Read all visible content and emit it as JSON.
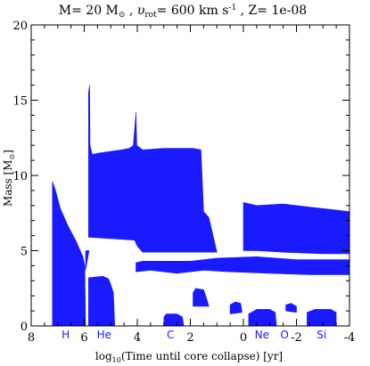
{
  "chart_data": {
    "type": "area",
    "title": {
      "prefix": "M= 20 M",
      "sun_symbol": "⊙",
      "mid1": " , ",
      "v": "υ",
      "v_sub": "rot",
      "mid2": "= 600 km s",
      "exp": "-1",
      "suffix": " , Z= 1e-08"
    },
    "xlabel": {
      "prefix": "log",
      "sub": "10",
      "suffix": "(Time until core collapse) [yr]"
    },
    "ylabel": {
      "prefix": "Mass [M",
      "sun_symbol": "⊙",
      "suffix": "]"
    },
    "xlim": [
      8,
      -4
    ],
    "ylim": [
      0,
      20
    ],
    "x_ticks": [
      {
        "value": 8,
        "label": "8"
      },
      {
        "value": 6,
        "label": "6"
      },
      {
        "value": 4,
        "label": "4"
      },
      {
        "value": 2,
        "label": "2"
      },
      {
        "value": 0,
        "label": "0"
      },
      {
        "value": -2,
        "label": "-2"
      },
      {
        "value": -4,
        "label": "-4"
      }
    ],
    "y_ticks": [
      {
        "value": 0,
        "label": "0"
      },
      {
        "value": 5,
        "label": "5"
      },
      {
        "value": 10,
        "label": "10"
      },
      {
        "value": 15,
        "label": "15"
      },
      {
        "value": 20,
        "label": "20"
      }
    ],
    "burning_stages": [
      {
        "label": "H",
        "x": 6.7
      },
      {
        "label": "He",
        "x": 5.25
      },
      {
        "label": "C",
        "x": 2.75
      },
      {
        "label": "Ne",
        "x": -0.7
      },
      {
        "label": "O",
        "x": -1.55
      },
      {
        "label": "Si",
        "x": -2.95
      }
    ],
    "convective_zones": [
      {
        "name": "H core",
        "points": [
          [
            7.2,
            0
          ],
          [
            7.2,
            9.6
          ],
          [
            7.1,
            9.1
          ],
          [
            6.9,
            7.8
          ],
          [
            6.6,
            6.6
          ],
          [
            6.3,
            5.6
          ],
          [
            6.05,
            4.6
          ],
          [
            5.98,
            4.0
          ],
          [
            5.95,
            0
          ]
        ]
      },
      {
        "name": "He core",
        "points": [
          [
            5.84,
            0
          ],
          [
            5.84,
            3.2
          ],
          [
            5.3,
            3.3
          ],
          [
            5.1,
            3.15
          ],
          [
            5.05,
            3.0
          ],
          [
            4.9,
            2.2
          ],
          [
            4.85,
            0
          ]
        ]
      },
      {
        "name": "H shell early",
        "points": [
          [
            5.95,
            3.7
          ],
          [
            5.9,
            4.2
          ],
          [
            5.84,
            4.8
          ],
          [
            5.82,
            5.0
          ],
          [
            5.95,
            5.0
          ],
          [
            5.95,
            3.7
          ]
        ]
      },
      {
        "name": "H shell",
        "points": [
          [
            5.84,
            5.9
          ],
          [
            5.84,
            15.5
          ],
          [
            5.8,
            16.0
          ],
          [
            5.78,
            12.0
          ],
          [
            5.7,
            11.4
          ],
          [
            5.4,
            11.5
          ],
          [
            4.6,
            11.7
          ],
          [
            4.3,
            11.8
          ],
          [
            4.15,
            12.0
          ],
          [
            4.08,
            13.5
          ],
          [
            4.05,
            14.2
          ],
          [
            4.02,
            12.0
          ],
          [
            3.8,
            11.7
          ],
          [
            3.0,
            11.8
          ],
          [
            1.9,
            11.8
          ],
          [
            1.6,
            11.7
          ],
          [
            1.5,
            7.6
          ],
          [
            1.3,
            7.2
          ],
          [
            1.0,
            4.9
          ],
          [
            3.8,
            4.9
          ],
          [
            4.0,
            5.3
          ],
          [
            4.1,
            5.7
          ],
          [
            5.84,
            5.9
          ]
        ]
      },
      {
        "name": "He shell",
        "points": [
          [
            4.05,
            3.6
          ],
          [
            4.05,
            4.2
          ],
          [
            3.8,
            4.3
          ],
          [
            2.0,
            4.3
          ],
          [
            1.0,
            4.5
          ],
          [
            -0.5,
            4.6
          ],
          [
            -2.0,
            4.4
          ],
          [
            -3.5,
            4.4
          ],
          [
            -4.0,
            4.4
          ],
          [
            -4.0,
            3.4
          ],
          [
            -2.5,
            3.4
          ],
          [
            -1.0,
            3.5
          ],
          [
            0.5,
            3.6
          ],
          [
            1.5,
            3.7
          ],
          [
            2.5,
            3.5
          ],
          [
            3.5,
            3.7
          ],
          [
            4.05,
            3.6
          ]
        ]
      },
      {
        "name": "outer envelope",
        "points": [
          [
            0.0,
            7.6
          ],
          [
            0.0,
            8.2
          ],
          [
            -0.5,
            8.0
          ],
          [
            -1.5,
            8.1
          ],
          [
            -2.5,
            7.9
          ],
          [
            -4.0,
            7.6
          ],
          [
            -4.0,
            4.8
          ],
          [
            -3.0,
            4.8
          ],
          [
            -1.5,
            4.9
          ],
          [
            -0.5,
            5.0
          ],
          [
            0.0,
            5.0
          ]
        ]
      },
      {
        "name": "C shell 1",
        "points": [
          [
            3.0,
            0
          ],
          [
            3.0,
            0.6
          ],
          [
            2.9,
            0.8
          ],
          [
            2.5,
            0.8
          ],
          [
            2.3,
            0.6
          ],
          [
            2.25,
            0
          ]
        ]
      },
      {
        "name": "C shell 2",
        "points": [
          [
            1.9,
            1.8
          ],
          [
            1.9,
            2.2
          ],
          [
            1.8,
            2.5
          ],
          [
            1.5,
            2.4
          ],
          [
            1.4,
            1.9
          ],
          [
            1.3,
            1.3
          ],
          [
            1.9,
            1.3
          ]
        ]
      },
      {
        "name": "C shell 3",
        "points": [
          [
            0.5,
            0.8
          ],
          [
            0.5,
            1.4
          ],
          [
            0.3,
            1.6
          ],
          [
            0.1,
            1.5
          ],
          [
            0.05,
            0.9
          ]
        ]
      },
      {
        "name": "Ne core",
        "points": [
          [
            -0.2,
            0
          ],
          [
            -0.2,
            0.8
          ],
          [
            -0.5,
            1.1
          ],
          [
            -1.0,
            1.1
          ],
          [
            -1.2,
            0.9
          ],
          [
            -1.25,
            0
          ]
        ]
      },
      {
        "name": "O shell",
        "points": [
          [
            -1.6,
            1.0
          ],
          [
            -1.6,
            1.4
          ],
          [
            -1.8,
            1.5
          ],
          [
            -2.0,
            1.3
          ],
          [
            -2.0,
            0.9
          ]
        ]
      },
      {
        "name": "Si core",
        "points": [
          [
            -2.4,
            0
          ],
          [
            -2.4,
            0.9
          ],
          [
            -2.7,
            1.1
          ],
          [
            -3.3,
            1.1
          ],
          [
            -3.5,
            0.9
          ],
          [
            -3.5,
            0
          ]
        ]
      }
    ],
    "colors": {
      "fill": "#1a1aff",
      "axis": "#000000",
      "background": "#ffffff"
    },
    "grid": false
  }
}
